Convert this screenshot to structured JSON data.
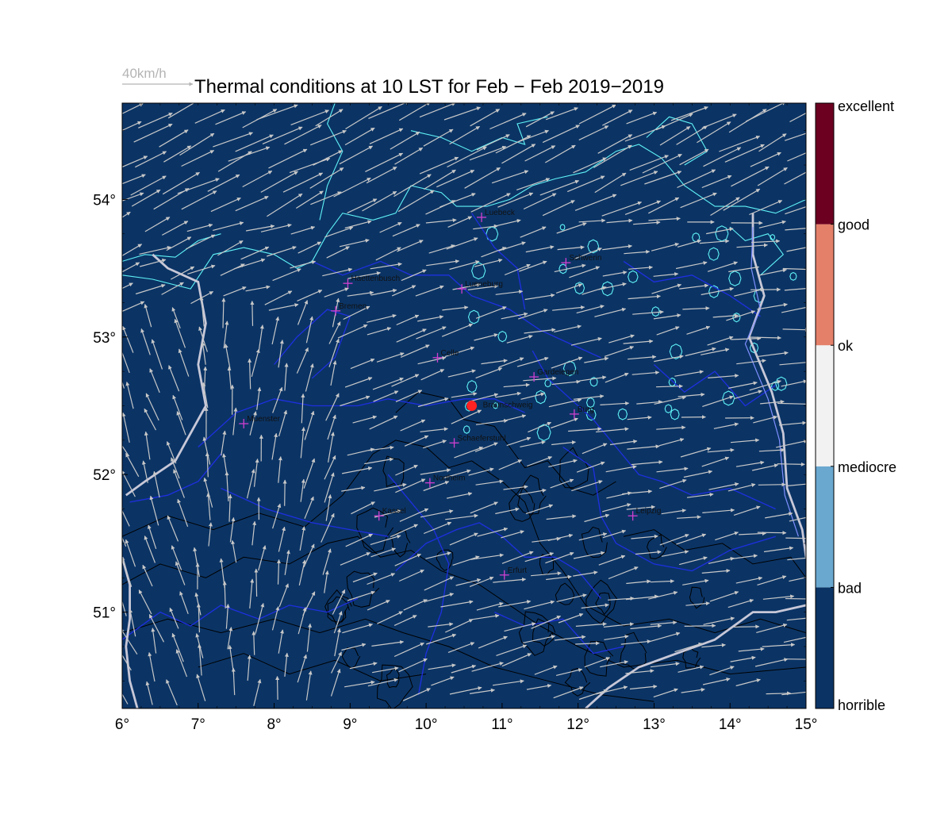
{
  "title": "Thermal conditions at 10 LST for Feb − Feb  2019−2019",
  "wind_legend": {
    "label": "40km/h"
  },
  "map": {
    "lon_range": [
      6,
      15
    ],
    "lat_range": [
      50.3,
      54.7
    ],
    "background": "#0b3465",
    "x_ticks": [
      "6°",
      "7°",
      "8°",
      "9°",
      "10°",
      "11°",
      "12°",
      "13°",
      "14°",
      "15°"
    ],
    "y_ticks": [
      "51°",
      "52°",
      "53°",
      "54°"
    ],
    "site": {
      "name": "Braunschweig",
      "lon": 10.6,
      "lat": 52.5,
      "color": "#ff2222"
    },
    "cities": [
      {
        "name": "Luebeck",
        "lon": 10.73,
        "lat": 53.87
      },
      {
        "name": "Schwerin",
        "lon": 11.84,
        "lat": 53.54
      },
      {
        "name": "Haettenbusch",
        "lon": 8.97,
        "lat": 53.39
      },
      {
        "name": "Lueneburg",
        "lon": 10.47,
        "lat": 53.35
      },
      {
        "name": "Bremen",
        "lon": 8.81,
        "lat": 53.19
      },
      {
        "name": "Celle",
        "lon": 10.15,
        "lat": 52.85
      },
      {
        "name": "Gardelegen",
        "lon": 11.42,
        "lat": 52.71
      },
      {
        "name": "Burg",
        "lon": 11.95,
        "lat": 52.44
      },
      {
        "name": "Muenster",
        "lon": 7.6,
        "lat": 52.37
      },
      {
        "name": "Schaeferstuhl",
        "lon": 10.37,
        "lat": 52.23
      },
      {
        "name": "Northeim",
        "lon": 10.05,
        "lat": 51.94
      },
      {
        "name": "Kassel",
        "lon": 9.38,
        "lat": 51.7
      },
      {
        "name": "Leipzig",
        "lon": 12.72,
        "lat": 51.7
      },
      {
        "name": "Erfurt",
        "lon": 11.03,
        "lat": 51.27
      }
    ]
  },
  "colorbar": {
    "categories": [
      {
        "label": "horrible",
        "color": "#0b3465"
      },
      {
        "label": "bad",
        "color": "#6aa8d0"
      },
      {
        "label": "mediocre",
        "color": "#f2f2f2"
      },
      {
        "label": "ok",
        "color": "#e4806a"
      },
      {
        "label": "good",
        "color": "#6b0020"
      },
      {
        "label": "excellent",
        "color": "#6b0020"
      }
    ]
  },
  "colors": {
    "coast": "#5ff2f6",
    "borders": "#1f2fe0",
    "rivers": "#c8c8d8",
    "terrain": "#000000",
    "wind": "#c8c8c8",
    "city_marker": "#d040d0"
  }
}
